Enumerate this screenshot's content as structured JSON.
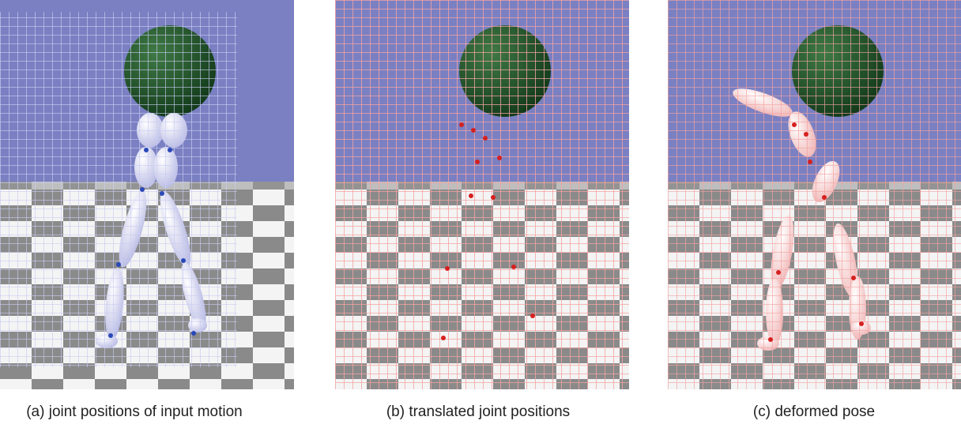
{
  "panels": [
    {
      "caption": "(a) joint positions of input motion"
    },
    {
      "caption": "(b) translated joint positions"
    },
    {
      "caption": "(c) deformed pose"
    }
  ]
}
